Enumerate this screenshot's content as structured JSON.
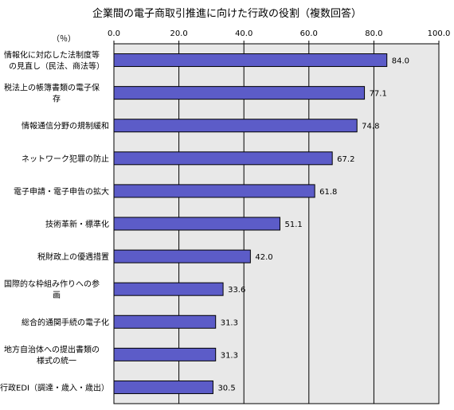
{
  "chart_data": {
    "type": "bar",
    "orientation": "horizontal",
    "title": "企業間の電子商取引推進に向けた行政の役割（複数回答）",
    "unit_label": "（％）",
    "categories": [
      [
        "情報化に対応した法制度等",
        "の見直し（民法、商法等）"
      ],
      [
        "税法上の帳簿書類の電子保",
        "存"
      ],
      [
        "情報通信分野の規制緩和"
      ],
      [
        "ネットワーク犯罪の防止"
      ],
      [
        "電子申請・電子申告の拡大"
      ],
      [
        "技術革新・標準化"
      ],
      [
        "税財政上の優遇措置"
      ],
      [
        "国際的な枠組み作りへの参",
        "画"
      ],
      [
        "総合的通関手続の電子化"
      ],
      [
        "地方自治体への提出書類の",
        "様式の統一"
      ],
      [
        "行政EDI（調達・歳入・歳出）"
      ]
    ],
    "values": [
      84.0,
      77.1,
      74.8,
      67.2,
      61.8,
      51.1,
      42.0,
      33.6,
      31.3,
      31.3,
      30.5
    ],
    "value_labels": [
      "84.0",
      "77.1",
      "74.8",
      "67.2",
      "61.8",
      "51.1",
      "42.0",
      "33.6",
      "31.3",
      "31.3",
      "30.5"
    ],
    "xlim": [
      0,
      100
    ],
    "xticks": [
      0,
      20,
      40,
      60,
      80,
      100
    ],
    "xtick_labels": [
      "0.0",
      "20.0",
      "40.0",
      "60.0",
      "80.0",
      "100.0"
    ],
    "grid": true,
    "colors": {
      "bar": "#5c5cc8",
      "plot_bg": "#e8e8e8",
      "bar_edge": "#000000",
      "grid": "#000000"
    }
  }
}
